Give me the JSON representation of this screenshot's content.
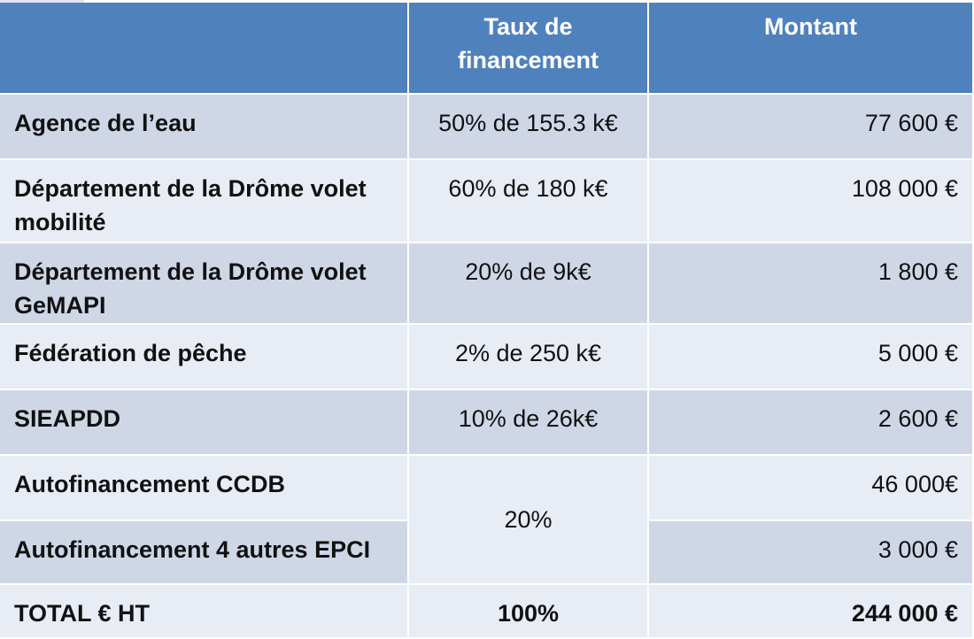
{
  "table": {
    "headers": [
      "",
      "Taux de\nfinancement",
      "Montant"
    ],
    "header_bg": "#4f81bd",
    "row_colors": [
      "#cfd7e7",
      "#e8ecf4"
    ],
    "rows": [
      {
        "label": "Agence de l’eau",
        "rate": "50% de 155.3 k€",
        "amount": "77 600 €"
      },
      {
        "label": "Département de la Drôme volet mobilité",
        "rate": "60% de 180 k€",
        "amount": "108 000 €"
      },
      {
        "label": "Département de la Drôme volet GeMAPI",
        "rate": "20% de 9k€",
        "amount": "1 800 €"
      },
      {
        "label": "Fédération de pêche",
        "rate": "2% de 250 k€",
        "amount": "5 000 €"
      },
      {
        "label": "SIEAPDD",
        "rate": "10% de 26k€",
        "amount": "2 600 €"
      },
      {
        "label": "Autofinancement CCDB",
        "rate": "20%",
        "amount": "46 000€"
      },
      {
        "label": "Autofinancement 4 autres EPCI",
        "rate": "",
        "amount": "3 000 €"
      }
    ],
    "total": {
      "label": "TOTAL € HT",
      "rate": "100%",
      "amount": "244 000 €"
    }
  }
}
